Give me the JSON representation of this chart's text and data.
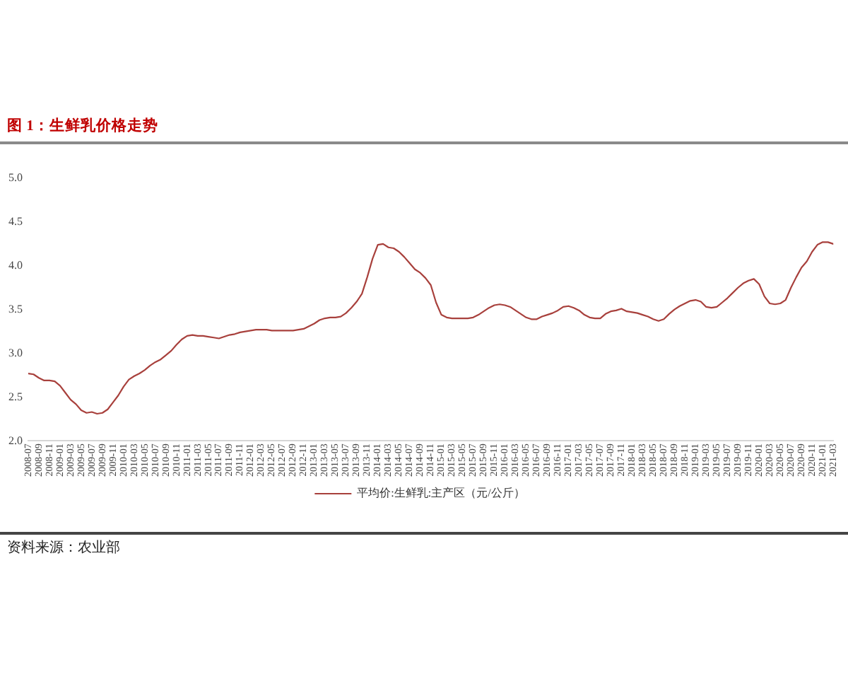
{
  "chart_data": {
    "type": "line",
    "title": "图 1：生鲜乳价格走势",
    "annotations": [
      "资料来源：农业部"
    ],
    "x": [
      "2008-07",
      "2008-08",
      "2008-09",
      "2008-10",
      "2008-11",
      "2008-12",
      "2009-01",
      "2009-02",
      "2009-03",
      "2009-04",
      "2009-05",
      "2009-06",
      "2009-07",
      "2009-08",
      "2009-09",
      "2009-10",
      "2009-11",
      "2009-12",
      "2010-01",
      "2010-02",
      "2010-03",
      "2010-04",
      "2010-05",
      "2010-06",
      "2010-07",
      "2010-08",
      "2010-09",
      "2010-10",
      "2010-11",
      "2010-12",
      "2011-01",
      "2011-02",
      "2011-03",
      "2011-04",
      "2011-05",
      "2011-06",
      "2011-07",
      "2011-08",
      "2011-09",
      "2011-10",
      "2011-11",
      "2011-12",
      "2012-01",
      "2012-02",
      "2012-03",
      "2012-04",
      "2012-05",
      "2012-06",
      "2012-07",
      "2012-08",
      "2012-09",
      "2012-10",
      "2012-11",
      "2012-12",
      "2013-01",
      "2013-02",
      "2013-03",
      "2013-04",
      "2013-05",
      "2013-06",
      "2013-07",
      "2013-08",
      "2013-09",
      "2013-10",
      "2013-11",
      "2013-12",
      "2014-01",
      "2014-02",
      "2014-03",
      "2014-04",
      "2014-05",
      "2014-06",
      "2014-07",
      "2014-08",
      "2014-09",
      "2014-10",
      "2014-11",
      "2014-12",
      "2015-01",
      "2015-02",
      "2015-03",
      "2015-04",
      "2015-05",
      "2015-06",
      "2015-07",
      "2015-08",
      "2015-09",
      "2015-10",
      "2015-11",
      "2015-12",
      "2016-01",
      "2016-02",
      "2016-03",
      "2016-04",
      "2016-05",
      "2016-06",
      "2016-07",
      "2016-08",
      "2016-09",
      "2016-10",
      "2016-11",
      "2016-12",
      "2017-01",
      "2017-02",
      "2017-03",
      "2017-04",
      "2017-05",
      "2017-06",
      "2017-07",
      "2017-08",
      "2017-09",
      "2017-10",
      "2017-11",
      "2017-12",
      "2018-01",
      "2018-02",
      "2018-03",
      "2018-04",
      "2018-05",
      "2018-06",
      "2018-07",
      "2018-08",
      "2018-09",
      "2018-10",
      "2018-11",
      "2018-12",
      "2019-01",
      "2019-02",
      "2019-03",
      "2019-04",
      "2019-05",
      "2019-06",
      "2019-07",
      "2019-08",
      "2019-09",
      "2019-10",
      "2019-11",
      "2019-12",
      "2020-01",
      "2020-02",
      "2020-03",
      "2020-04",
      "2020-05",
      "2020-06",
      "2020-07",
      "2020-08",
      "2020-09",
      "2020-10",
      "2020-11",
      "2020-12",
      "2021-01",
      "2021-02",
      "2021-03"
    ],
    "xlim": [
      "2008-07",
      "2021-03"
    ],
    "xticks": [
      "2008-07",
      "2008-09",
      "2008-11",
      "2009-01",
      "2009-03",
      "2009-05",
      "2009-07",
      "2009-09",
      "2009-11",
      "2010-01",
      "2010-03",
      "2010-05",
      "2010-07",
      "2010-09",
      "2010-11",
      "2011-01",
      "2011-03",
      "2011-05",
      "2011-07",
      "2011-09",
      "2011-11",
      "2012-01",
      "2012-03",
      "2012-05",
      "2012-07",
      "2012-09",
      "2012-11",
      "2013-01",
      "2013-03",
      "2013-05",
      "2013-07",
      "2013-09",
      "2013-11",
      "2014-01",
      "2014-03",
      "2014-05",
      "2014-07",
      "2014-09",
      "2014-11",
      "2015-01",
      "2015-03",
      "2015-05",
      "2015-07",
      "2015-09",
      "2015-11",
      "2016-01",
      "2016-03",
      "2016-05",
      "2016-07",
      "2016-09",
      "2016-11",
      "2017-01",
      "2017-03",
      "2017-05",
      "2017-07",
      "2017-09",
      "2017-11",
      "2018-01",
      "2018-03",
      "2018-05",
      "2018-07",
      "2018-09",
      "2018-11",
      "2019-01",
      "2019-03",
      "2019-05",
      "2019-07",
      "2019-09",
      "2019-11",
      "2020-01",
      "2020-03",
      "2020-05",
      "2020-07",
      "2020-09",
      "2020-11",
      "2021-01",
      "2021-03"
    ],
    "ylim": [
      2,
      5
    ],
    "yticks": [
      {
        "value": 2,
        "label": "2.0"
      },
      {
        "value": 2.5,
        "label": "2.5"
      },
      {
        "value": 3,
        "label": "3.0"
      },
      {
        "value": 3.5,
        "label": "3.5"
      },
      {
        "value": 4,
        "label": "4.0"
      },
      {
        "value": 4.5,
        "label": "4.5"
      },
      {
        "value": 5,
        "label": "5.0"
      }
    ],
    "grid": false,
    "legend": "bottom",
    "series": [
      {
        "name": "平均价:生鲜乳:主产区（元/公斤）",
        "color": "#a8403c",
        "values": [
          2.77,
          2.76,
          2.72,
          2.69,
          2.69,
          2.68,
          2.63,
          2.55,
          2.47,
          2.42,
          2.35,
          2.32,
          2.33,
          2.31,
          2.32,
          2.36,
          2.44,
          2.52,
          2.62,
          2.7,
          2.74,
          2.77,
          2.81,
          2.86,
          2.9,
          2.93,
          2.98,
          3.03,
          3.1,
          3.16,
          3.2,
          3.21,
          3.2,
          3.2,
          3.19,
          3.18,
          3.17,
          3.19,
          3.21,
          3.22,
          3.24,
          3.25,
          3.26,
          3.27,
          3.27,
          3.27,
          3.26,
          3.26,
          3.26,
          3.26,
          3.26,
          3.27,
          3.28,
          3.31,
          3.34,
          3.38,
          3.4,
          3.41,
          3.41,
          3.42,
          3.46,
          3.52,
          3.59,
          3.68,
          3.87,
          4.08,
          4.24,
          4.25,
          4.21,
          4.2,
          4.16,
          4.1,
          4.03,
          3.96,
          3.92,
          3.86,
          3.78,
          3.58,
          3.44,
          3.41,
          3.4,
          3.4,
          3.4,
          3.4,
          3.41,
          3.44,
          3.48,
          3.52,
          3.55,
          3.56,
          3.55,
          3.53,
          3.49,
          3.45,
          3.41,
          3.39,
          3.39,
          3.42,
          3.44,
          3.46,
          3.49,
          3.53,
          3.54,
          3.52,
          3.49,
          3.44,
          3.41,
          3.4,
          3.4,
          3.45,
          3.48,
          3.49,
          3.51,
          3.48,
          3.47,
          3.46,
          3.44,
          3.42,
          3.39,
          3.37,
          3.39,
          3.45,
          3.5,
          3.54,
          3.57,
          3.6,
          3.61,
          3.59,
          3.53,
          3.52,
          3.53,
          3.58,
          3.63,
          3.69,
          3.75,
          3.8,
          3.83,
          3.85,
          3.79,
          3.65,
          3.57,
          3.56,
          3.57,
          3.61,
          3.75,
          3.87,
          3.98,
          4.05,
          4.16,
          4.24,
          4.27,
          4.27,
          4.25
        ]
      }
    ]
  }
}
